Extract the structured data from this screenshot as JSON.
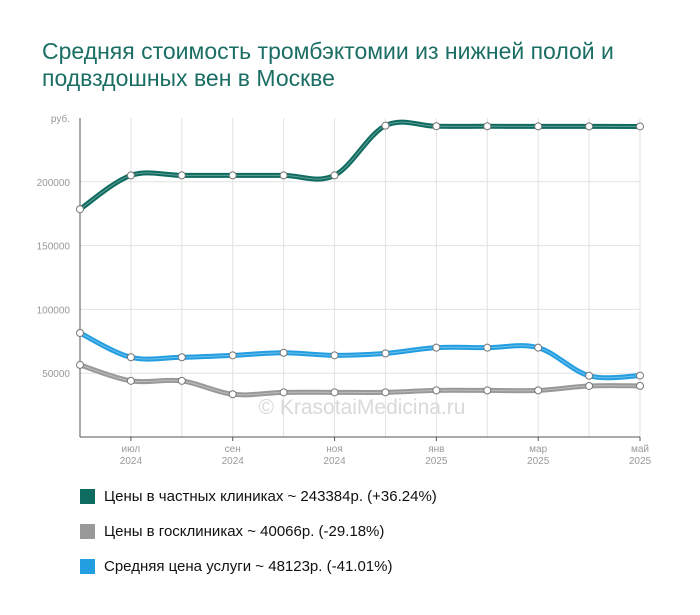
{
  "title": "Средняя стоимость тромбэктомии из нижней полой и подвздошных вен в Москве",
  "watermark": "© KrasotaiMedicina.ru",
  "chart_data": {
    "type": "line",
    "yunit": "руб.",
    "ylim": [
      0,
      250000
    ],
    "yticks": [
      50000,
      100000,
      150000,
      200000
    ],
    "ytick_labels": [
      "50000",
      "100000",
      "150000",
      "200000"
    ],
    "x": [
      "2024-06",
      "2024-07",
      "2024-08",
      "2024-09",
      "2024-10",
      "2024-11",
      "2024-12",
      "2025-01",
      "2025-02",
      "2025-03",
      "2025-04",
      "2025-05"
    ],
    "xtick_labels": [
      {
        "index": 1,
        "month": "июл",
        "year": "2024"
      },
      {
        "index": 3,
        "month": "сен",
        "year": "2024"
      },
      {
        "index": 5,
        "month": "ноя",
        "year": "2024"
      },
      {
        "index": 7,
        "month": "янв",
        "year": "2025"
      },
      {
        "index": 9,
        "month": "мар",
        "year": "2025"
      },
      {
        "index": 11,
        "month": "май",
        "year": "2025"
      }
    ],
    "grid": true,
    "legend_position": "bottom",
    "series": [
      {
        "name": "Цены в частных клиниках ~ 243384р. (+36.24%)",
        "color": "#0e6b5f",
        "values": [
          178500,
          205000,
          205000,
          205000,
          205000,
          205000,
          244000,
          243500,
          243500,
          243400,
          243400,
          243384
        ]
      },
      {
        "name": "Цены в госклиниках ~ 40066р. (-29.18%)",
        "color": "#999999",
        "values": [
          56500,
          44000,
          44000,
          33500,
          35000,
          35000,
          35000,
          36500,
          36500,
          36500,
          40000,
          40066
        ]
      },
      {
        "name": "Средняя цена услуги ~ 48123р. (-41.01%)",
        "color": "#239ee0",
        "values": [
          81500,
          62500,
          62500,
          64000,
          66000,
          64000,
          65500,
          70000,
          70000,
          70000,
          48000,
          48123
        ]
      }
    ]
  }
}
